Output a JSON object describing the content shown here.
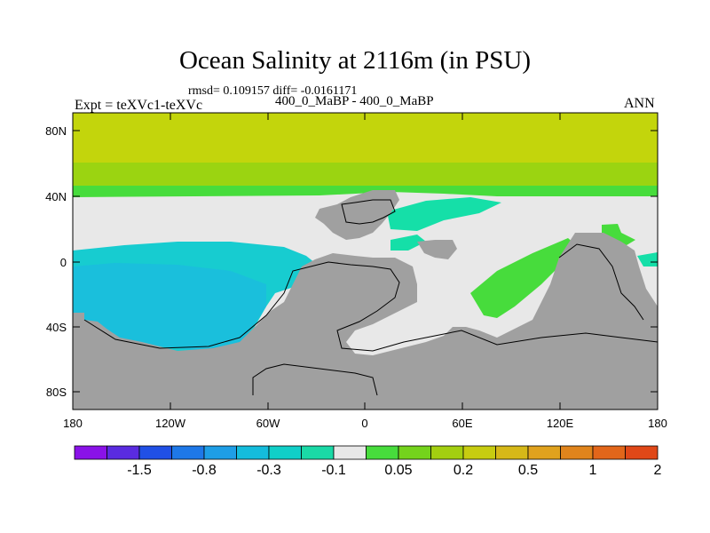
{
  "figure": {
    "title": "Ocean Salinity at 2116m (in PSU)",
    "stats": "rmsd= 0.109157 diff= -0.0161171",
    "left_label": "Expt = teXVc1-teXVc",
    "center_label": "400_0_MaBP - 400_0_MaBP",
    "right_label": "ANN"
  },
  "axes": {
    "lat_ticks": [
      "80N",
      "40N",
      "0",
      "40S",
      "80S"
    ],
    "lon_ticks": [
      "180",
      "120W",
      "60W",
      "0",
      "60E",
      "120E",
      "180"
    ]
  },
  "colorbar": {
    "labels": [
      "-1.5",
      "-0.8",
      "-0.3",
      "-0.1",
      "0.05",
      "0.2",
      "0.5",
      "1",
      "2"
    ],
    "colors": [
      "#8a12e8",
      "#5a2be0",
      "#2050e6",
      "#1e78e8",
      "#1e9ee6",
      "#14bcdc",
      "#10cfc8",
      "#1ad9a6",
      "#e8e8e8",
      "#47dc3c",
      "#74d31c",
      "#a3cf10",
      "#c7cc10",
      "#d6b818",
      "#e0a21e",
      "#e0841c",
      "#e2661a",
      "#e04818"
    ]
  },
  "map_colors": {
    "land": "#a0a0a0",
    "near_zero": "#e8e8e8",
    "band_north": "#c3d50c",
    "band_mid": "#9bd411",
    "green": "#47dc3c",
    "teal": "#17ccd0",
    "cyan": "#1abfdc",
    "aqua": "#15dfa8"
  }
}
